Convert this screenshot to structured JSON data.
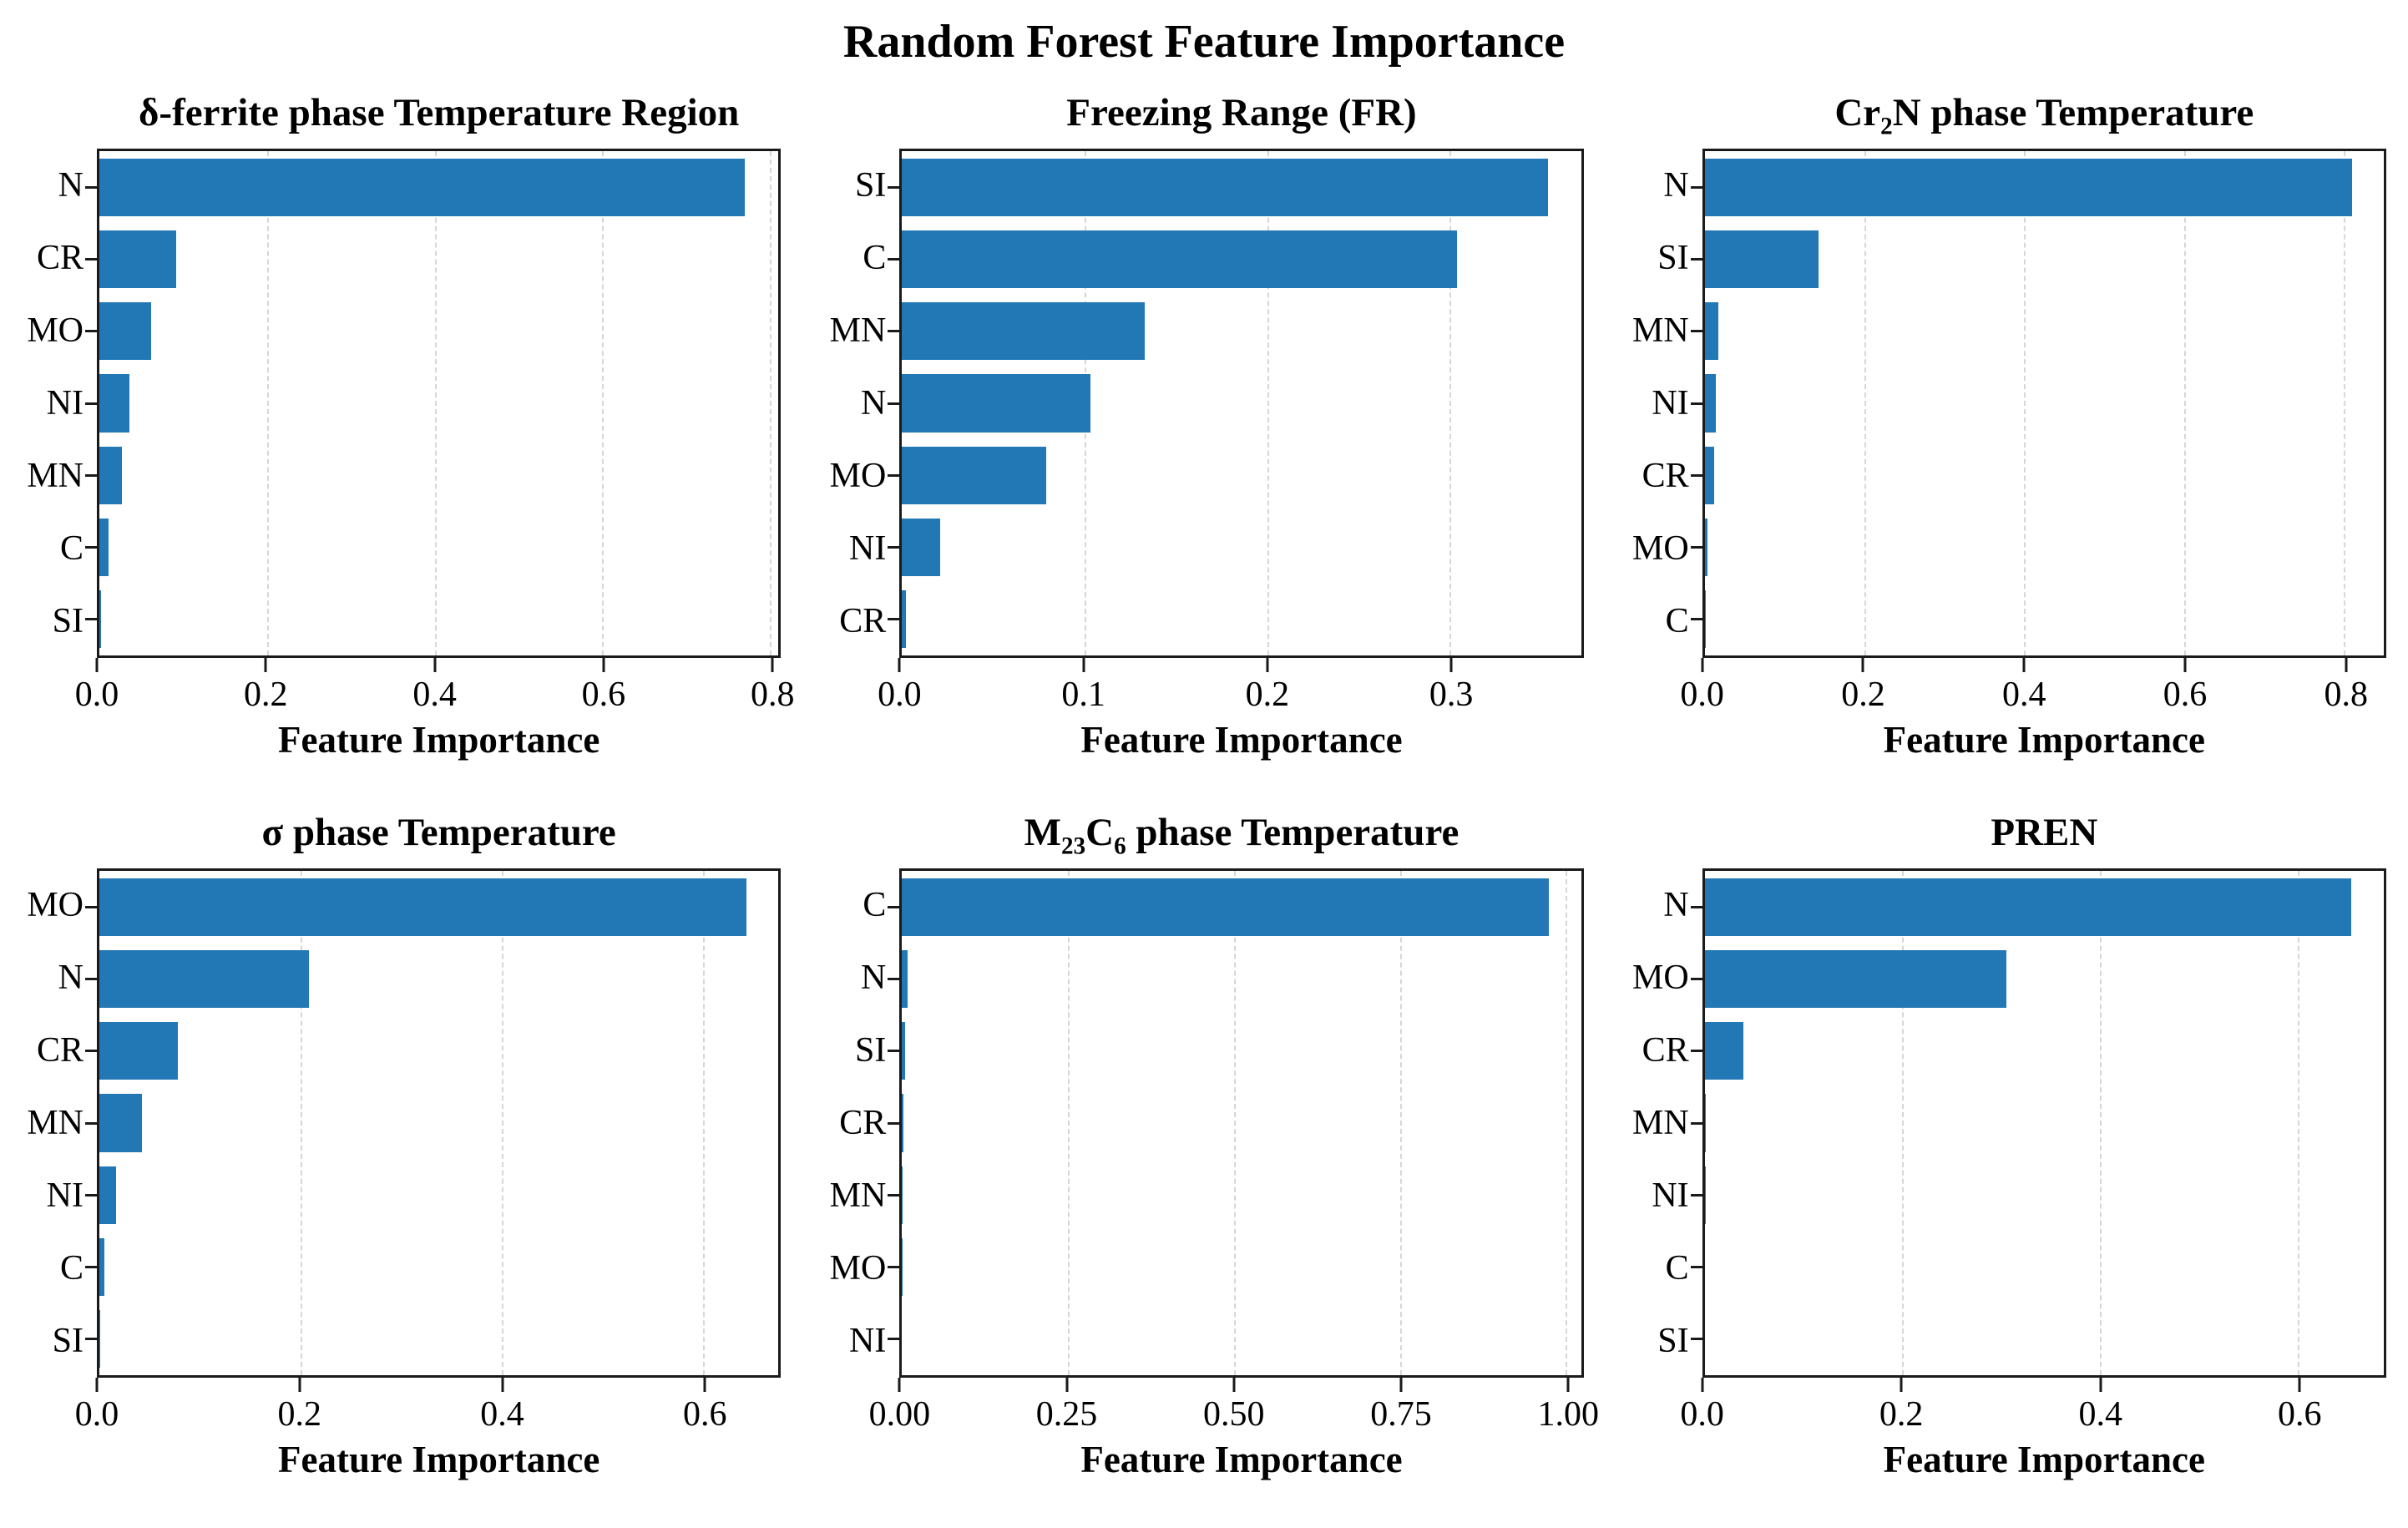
{
  "figure": {
    "title": "Random Forest Feature Importance",
    "bar_color": "#2278b5",
    "grid_color": "#d6d6d6",
    "spine_color": "#1a1a1a"
  },
  "chart_data": [
    {
      "id": "delta-ferrite",
      "type": "bar",
      "orientation": "horizontal",
      "title": "δ-ferrite phase Temperature Region",
      "title_parts": [
        {
          "t": "δ-ferrite phase Temperature Region"
        }
      ],
      "categories": [
        "N",
        "CR",
        "MO",
        "NI",
        "MN",
        "C",
        "SI"
      ],
      "values": [
        0.77,
        0.092,
        0.062,
        0.036,
        0.027,
        0.011,
        0.002
      ],
      "xlabel": "Feature Importance",
      "xlim": [
        0,
        0.81
      ],
      "xticks": [
        0,
        0.2,
        0.4,
        0.6,
        0.8
      ],
      "xtick_labels": [
        "0.0",
        "0.2",
        "0.4",
        "0.6",
        "0.8"
      ],
      "grid": "vertical-dashed",
      "legend": "none"
    },
    {
      "id": "freezing-range",
      "type": "bar",
      "orientation": "horizontal",
      "title": "Freezing Range (FR)",
      "title_parts": [
        {
          "t": "Freezing Range (FR)"
        }
      ],
      "categories": [
        "SI",
        "C",
        "MN",
        "N",
        "MO",
        "NI",
        "CR"
      ],
      "values": [
        0.354,
        0.304,
        0.133,
        0.103,
        0.079,
        0.021,
        0.002
      ],
      "xlabel": "Feature Importance",
      "xlim": [
        0,
        0.372
      ],
      "xticks": [
        0,
        0.1,
        0.2,
        0.3
      ],
      "xtick_labels": [
        "0.0",
        "0.1",
        "0.2",
        "0.3"
      ],
      "grid": "vertical-dashed",
      "legend": "none"
    },
    {
      "id": "cr2n",
      "type": "bar",
      "orientation": "horizontal",
      "title": "Cr₂N phase Temperature",
      "title_parts": [
        {
          "t": "Cr"
        },
        {
          "t": "2",
          "sub": true
        },
        {
          "t": "N phase Temperature"
        }
      ],
      "categories": [
        "N",
        "SI",
        "MN",
        "NI",
        "CR",
        "MO",
        "C"
      ],
      "values": [
        0.81,
        0.142,
        0.017,
        0.014,
        0.012,
        0.003,
        0.001
      ],
      "xlabel": "Feature Importance",
      "xlim": [
        0,
        0.85
      ],
      "xticks": [
        0,
        0.2,
        0.4,
        0.6,
        0.8
      ],
      "xtick_labels": [
        "0.0",
        "0.2",
        "0.4",
        "0.6",
        "0.8"
      ],
      "grid": "vertical-dashed",
      "legend": "none"
    },
    {
      "id": "sigma",
      "type": "bar",
      "orientation": "horizontal",
      "title": "σ phase Temperature",
      "title_parts": [
        {
          "t": "σ phase Temperature"
        }
      ],
      "categories": [
        "MO",
        "N",
        "CR",
        "MN",
        "NI",
        "C",
        "SI"
      ],
      "values": [
        0.643,
        0.208,
        0.078,
        0.042,
        0.017,
        0.005,
        0.001
      ],
      "xlabel": "Feature Importance",
      "xlim": [
        0,
        0.675
      ],
      "xticks": [
        0,
        0.2,
        0.4,
        0.6
      ],
      "xtick_labels": [
        "0.0",
        "0.2",
        "0.4",
        "0.6"
      ],
      "grid": "vertical-dashed",
      "legend": "none"
    },
    {
      "id": "m23c6",
      "type": "bar",
      "orientation": "horizontal",
      "title": "M₂₃C₆ phase Temperature",
      "title_parts": [
        {
          "t": "M"
        },
        {
          "t": "23",
          "sub": true
        },
        {
          "t": "C"
        },
        {
          "t": "6",
          "sub": true
        },
        {
          "t": " phase Temperature"
        }
      ],
      "categories": [
        "C",
        "N",
        "SI",
        "CR",
        "MN",
        "MO",
        "NI"
      ],
      "values": [
        0.974,
        0.008,
        0.004,
        0.002,
        0.001,
        0.001,
        0.0
      ],
      "xlabel": "Feature Importance",
      "xlim": [
        0,
        1.023
      ],
      "xticks": [
        0,
        0.25,
        0.5,
        0.75,
        1.0
      ],
      "xtick_labels": [
        "0.00",
        "0.25",
        "0.50",
        "0.75",
        "1.00"
      ],
      "grid": "vertical-dashed",
      "legend": "none"
    },
    {
      "id": "pren",
      "type": "bar",
      "orientation": "horizontal",
      "title": "PREN",
      "title_parts": [
        {
          "t": "PREN"
        }
      ],
      "categories": [
        "N",
        "MO",
        "CR",
        "MN",
        "NI",
        "C",
        "SI"
      ],
      "values": [
        0.654,
        0.305,
        0.039,
        0.001,
        0.001,
        0.0,
        0.0
      ],
      "xlabel": "Feature Importance",
      "xlim": [
        0,
        0.687
      ],
      "xticks": [
        0,
        0.2,
        0.4,
        0.6
      ],
      "xtick_labels": [
        "0.0",
        "0.2",
        "0.4",
        "0.6"
      ],
      "grid": "vertical-dashed",
      "legend": "none"
    }
  ]
}
